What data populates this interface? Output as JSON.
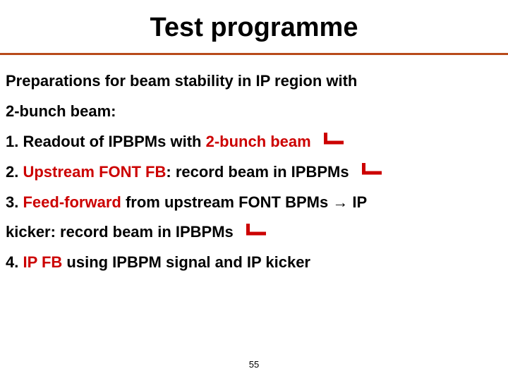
{
  "title": "Test programme",
  "intro_line1": "Preparations for beam stability in IP region with",
  "intro_line2": "2-bunch beam:",
  "item1_prefix": "1. Readout of IPBPMs with ",
  "item1_red": "2-bunch beam",
  "item2_prefix": "2. ",
  "item2_red": "Upstream FONT FB",
  "item2_rest": ": record beam in IPBPMs",
  "item3_prefix": "3. ",
  "item3_red": "Feed-forward",
  "item3_mid": " from upstream FONT BPMs ",
  "item3_arrow": "→",
  "item3_tail": " IP",
  "item3_line2": "kicker: record beam in IPBPMs",
  "item4_prefix": "4. ",
  "item4_red": "IP FB",
  "item4_rest": " using IPBPM signal and IP kicker",
  "pagenum": "55",
  "colors": {
    "rule": "#b84a1a",
    "red": "#cc0000",
    "text": "#000000",
    "background": "#ffffff"
  }
}
